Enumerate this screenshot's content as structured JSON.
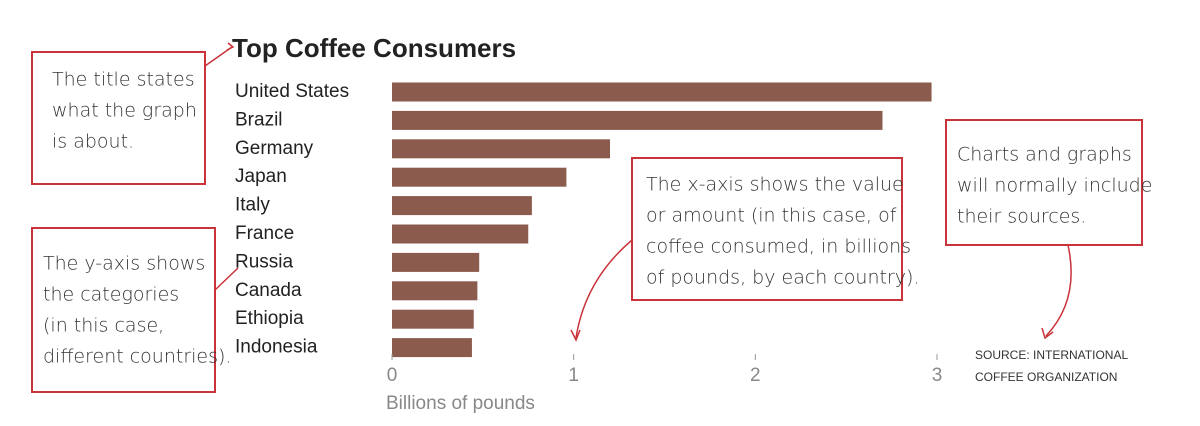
{
  "chart_data": {
    "type": "bar",
    "orientation": "horizontal",
    "title": "Top Coffee Consumers",
    "categories": [
      "United States",
      "Brazil",
      "Germany",
      "Japan",
      "Italy",
      "France",
      "Russia",
      "Canada",
      "Ethiopia",
      "Indonesia"
    ],
    "values": [
      2.97,
      2.7,
      1.2,
      0.96,
      0.77,
      0.75,
      0.48,
      0.47,
      0.45,
      0.44
    ],
    "color": "#8b5c4e",
    "xlim": [
      0,
      3
    ],
    "xticks": [
      0,
      1,
      2,
      3
    ],
    "x_label": "Billions of pounds",
    "source": [
      "SOURCE: INTERNATIONAL",
      "COFFEE ORGANIZATION"
    ],
    "annotations": [
      {
        "lines": [
          "The title states",
          "what the graph",
          "is about."
        ]
      },
      {
        "lines": [
          "The y-axis shows",
          "the categories",
          "(in this case,",
          "different countries)."
        ]
      },
      {
        "lines": [
          "The x-axis shows the value",
          "or amount (in this case, of",
          "coffee consumed, in billions",
          "of pounds, by each country)."
        ]
      },
      {
        "lines": [
          "Charts and graphs",
          "will normally include",
          "their sources."
        ]
      }
    ]
  }
}
